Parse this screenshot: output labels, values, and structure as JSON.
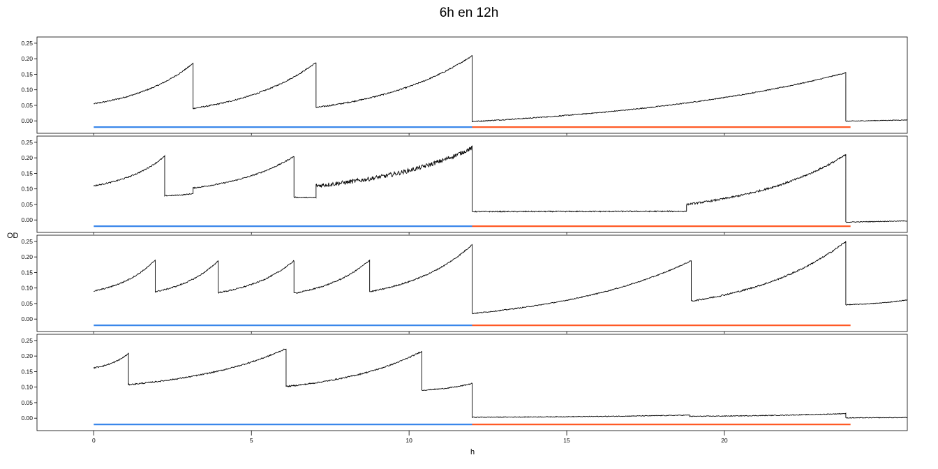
{
  "chart_data": {
    "type": "line",
    "title": "6h en 12h",
    "xlabel": "h",
    "ylabel": "OD",
    "xlim": [
      -1.8,
      25.8
    ],
    "ylim": [
      -0.04,
      0.27
    ],
    "x_ticks": [
      0,
      5,
      10,
      15,
      20
    ],
    "y_ticks": [
      "0.00",
      "0.05",
      "0.10",
      "0.15",
      "0.20",
      "0.25"
    ],
    "colors": {
      "trace": "#000000",
      "phase1": "#3a87ea",
      "phase2": "#ff5a26",
      "frame": "#000000"
    },
    "phase_bar_y": -0.02,
    "phases": [
      {
        "x": [
          0,
          12
        ],
        "color_key": "phase1"
      },
      {
        "x": [
          12,
          24
        ],
        "color_key": "phase2"
      }
    ],
    "panels": [
      {
        "segments": [
          {
            "x": [
              0,
              3.15
            ],
            "y": [
              0.055,
              0.185
            ],
            "noise": 0.002
          },
          {
            "x": [
              3.15,
              7.05
            ],
            "y": [
              0.04,
              0.188
            ],
            "noise": 0.002
          },
          {
            "x": [
              7.05,
              12.0
            ],
            "y": [
              0.043,
              0.21
            ],
            "noise": 0.002
          },
          {
            "x": [
              12.0,
              23.85
            ],
            "y": [
              -0.002,
              0.155
            ],
            "noise": 0.0015
          },
          {
            "x": [
              23.85,
              25.8
            ],
            "y": [
              -0.001,
              0.003
            ],
            "noise": 0.001
          }
        ]
      },
      {
        "segments": [
          {
            "x": [
              0,
              2.25
            ],
            "y": [
              0.11,
              0.205
            ],
            "noise": 0.002
          },
          {
            "x": [
              2.25,
              3.15
            ],
            "y": [
              0.078,
              0.085
            ],
            "noise": 0.0015
          },
          {
            "x": [
              3.15,
              6.35
            ],
            "y": [
              0.103,
              0.205
            ],
            "noise": 0.002
          },
          {
            "x": [
              6.35,
              7.05
            ],
            "y": [
              0.073,
              0.072
            ],
            "noise": 0.0015
          },
          {
            "x": [
              7.05,
              12.0
            ],
            "y": [
              0.11,
              0.232
            ],
            "noise": 0.007
          },
          {
            "x": [
              12.0,
              18.8
            ],
            "y": [
              0.027,
              0.028
            ],
            "noise": 0.0018
          },
          {
            "x": [
              18.8,
              23.85
            ],
            "y": [
              0.05,
              0.21
            ],
            "noise": 0.003
          },
          {
            "x": [
              23.85,
              25.8
            ],
            "y": [
              -0.007,
              -0.003
            ],
            "noise": 0.0012
          }
        ]
      },
      {
        "segments": [
          {
            "x": [
              0,
              1.95
            ],
            "y": [
              0.09,
              0.19
            ],
            "noise": 0.002
          },
          {
            "x": [
              1.95,
              3.95
            ],
            "y": [
              0.088,
              0.188
            ],
            "noise": 0.002
          },
          {
            "x": [
              3.95,
              6.35
            ],
            "y": [
              0.085,
              0.188
            ],
            "noise": 0.002
          },
          {
            "x": [
              6.35,
              8.75
            ],
            "y": [
              0.083,
              0.19
            ],
            "noise": 0.002
          },
          {
            "x": [
              8.75,
              12.0
            ],
            "y": [
              0.088,
              0.24
            ],
            "noise": 0.002
          },
          {
            "x": [
              12.0,
              18.95
            ],
            "y": [
              0.018,
              0.188
            ],
            "noise": 0.0015
          },
          {
            "x": [
              18.95,
              23.85
            ],
            "y": [
              0.058,
              0.25
            ],
            "noise": 0.0025
          },
          {
            "x": [
              23.85,
              25.8
            ],
            "y": [
              0.046,
              0.062
            ],
            "noise": 0.0012
          }
        ]
      },
      {
        "segments": [
          {
            "x": [
              0,
              1.1
            ],
            "y": [
              0.162,
              0.208
            ],
            "noise": 0.002
          },
          {
            "x": [
              1.1,
              6.1
            ],
            "y": [
              0.108,
              0.224
            ],
            "noise": 0.002
          },
          {
            "x": [
              6.1,
              10.4
            ],
            "y": [
              0.102,
              0.215
            ],
            "noise": 0.002
          },
          {
            "x": [
              10.4,
              12.0
            ],
            "y": [
              0.09,
              0.112
            ],
            "noise": 0.0015
          },
          {
            "x": [
              12.0,
              18.9
            ],
            "y": [
              0.003,
              0.01
            ],
            "noise": 0.0012
          },
          {
            "x": [
              18.9,
              23.85
            ],
            "y": [
              0.006,
              0.015
            ],
            "noise": 0.0012
          },
          {
            "x": [
              23.85,
              25.8
            ],
            "y": [
              0.001,
              0.002
            ],
            "noise": 0.001
          }
        ]
      }
    ]
  }
}
